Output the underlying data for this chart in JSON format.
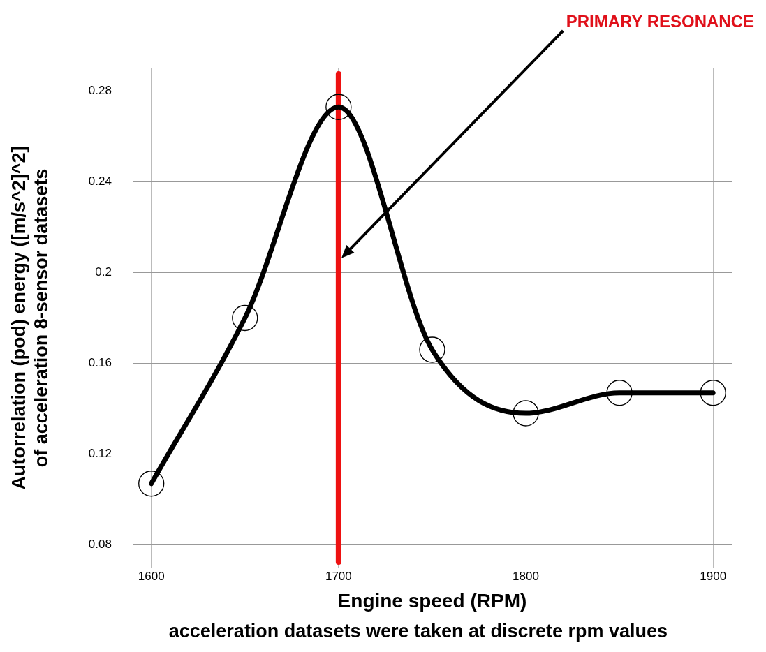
{
  "chart_data": {
    "type": "line",
    "xlabel": "Engine speed (RPM)",
    "ylabel": "Autorrelation (pod) energy ([m/s^2]^2]\nof acceleration 8-sensor datasets",
    "x": [
      1600,
      1650,
      1700,
      1750,
      1800,
      1850,
      1900
    ],
    "series": [
      {
        "color": "#000000",
        "values": [
          0.107,
          0.18,
          0.273,
          0.166,
          0.138,
          0.147,
          0.147
        ]
      }
    ],
    "xlim": [
      1590,
      1910
    ],
    "xticks": [
      1600,
      1700,
      1800,
      1900
    ],
    "ylim": [
      0.07,
      0.29
    ],
    "yticks": [
      0.08,
      0.12,
      0.16,
      0.2,
      0.24,
      0.28
    ],
    "grid": true,
    "legend": false,
    "marker": "circle",
    "line_style": "solid",
    "ref_lines": [
      {
        "axis": "x",
        "value": 1700,
        "color": "#ee1111"
      }
    ],
    "annotations": [
      "PRIMARY RESONANCE",
      "acceleration datasets were taken at discrete rpm values"
    ]
  }
}
